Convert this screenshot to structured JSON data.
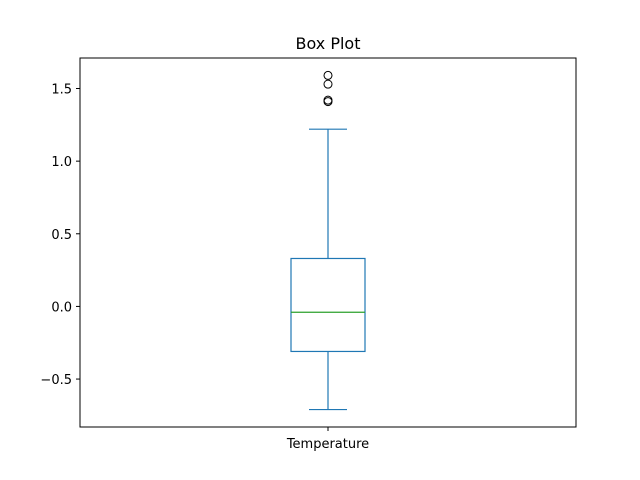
{
  "chart_data": {
    "type": "box",
    "title": "Box Plot",
    "xlabel": "",
    "ylabel": "",
    "categories": [
      "Temperature"
    ],
    "ylim": [
      -0.83,
      1.71
    ],
    "yticks": [
      -0.5,
      0.0,
      0.5,
      1.0,
      1.5
    ],
    "ytick_labels": [
      "−0.5",
      "0.0",
      "0.5",
      "1.0",
      "1.5"
    ],
    "boxes": [
      {
        "name": "Temperature",
        "whisker_low": -0.71,
        "q1": -0.31,
        "median": -0.04,
        "q3": 0.33,
        "whisker_high": 1.22,
        "outliers": [
          1.41,
          1.42,
          1.53,
          1.59
        ]
      }
    ],
    "grid": false,
    "colors": {
      "box": "#1f77b4",
      "median": "#2ca02c",
      "axes": "#000000"
    }
  }
}
